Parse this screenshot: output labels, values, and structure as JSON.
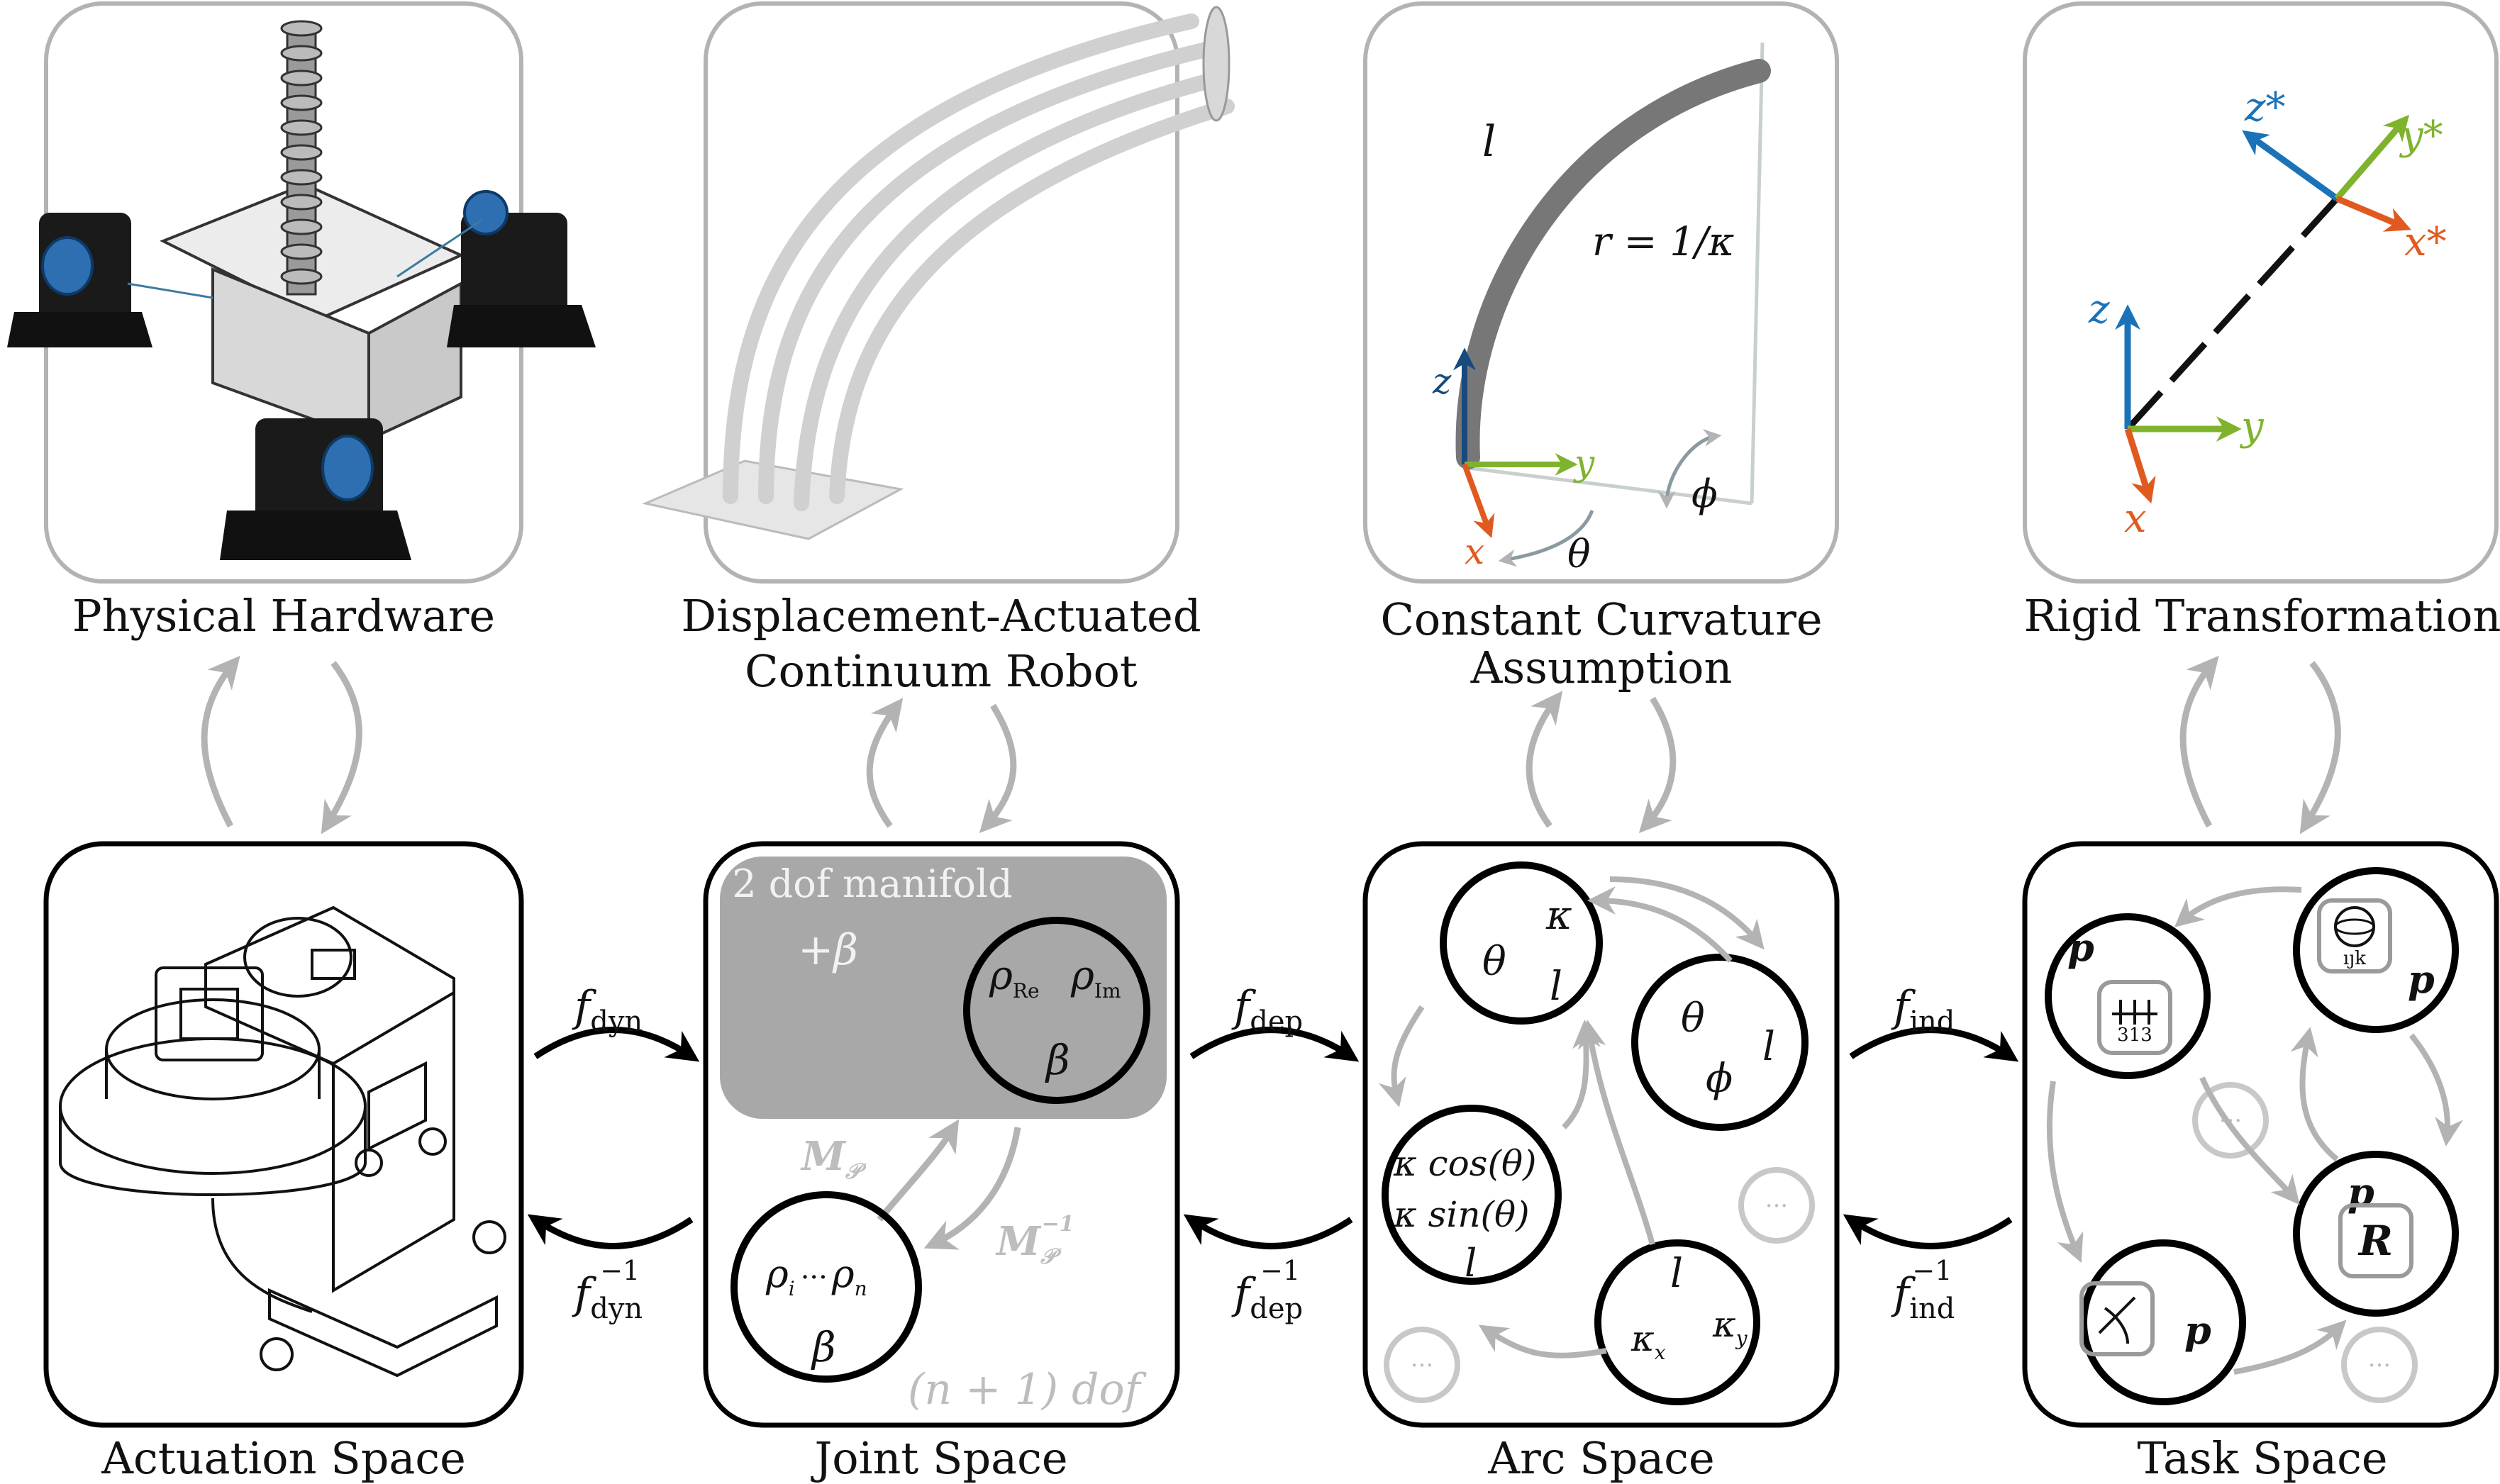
{
  "colors": {
    "frame_gray": "#b3b3b3",
    "frame_black": "#000000",
    "axis_blue": "#1a73b8",
    "axis_green": "#7fb32e",
    "axis_orange": "#e05a20",
    "manifold_fill": "#a8a8a8",
    "faded_text": "#bdbdbd"
  },
  "top_captions": {
    "physical_hardware": "Physical Hardware",
    "continuum_robot_line1": "Displacement-Actuated",
    "continuum_robot_line2": "Continuum Robot",
    "constant_curvature_line1": "Constant Curvature",
    "constant_curvature_line2": "Assumption",
    "rigid_transformation": "Rigid Transformation"
  },
  "bottom_captions": {
    "actuation_space": "Actuation Space",
    "joint_space": "Joint Space",
    "arc_space": "Arc Space",
    "task_space": "Task Space"
  },
  "maps": {
    "f_dyn": "f",
    "f_dyn_sub": "dyn",
    "f_dep": "f",
    "f_dep_sub": "dep",
    "f_ind": "f",
    "f_ind_sub": "ind",
    "inverse_sup": "−1"
  },
  "curvature_panel": {
    "l": "l",
    "r": "r = 1/κ",
    "z": "z",
    "y": "y",
    "x": "x",
    "theta": "θ",
    "phi": "ϕ"
  },
  "rigid_panel": {
    "z_star": "z*",
    "y_star": "y*",
    "x_star": "x*",
    "z": "z",
    "y": "y",
    "x": "x"
  },
  "joint_space": {
    "manifold_title": "2 dof manifold",
    "manifold_plus": "+β",
    "rho_re": "ρ",
    "rho_re_sub": "Re",
    "rho_im": "ρ",
    "rho_im_sub": "Im",
    "beta": "β",
    "map_P": "M",
    "map_P_sub": "𝒫",
    "map_P_inv": "M",
    "map_P_inv_sub": "𝒫",
    "map_P_inv_sup": "−1",
    "rho_i": "ρ",
    "rho_i_sub": "i",
    "dots": "···",
    "rho_n": "ρ",
    "rho_n_sub": "n",
    "beta2": "β",
    "dof_label": "(n + 1) dof"
  },
  "arc_space": {
    "c1": [
      "θ",
      "κ",
      "l"
    ],
    "c2": [
      "θ",
      "ϕ",
      "l"
    ],
    "c3": [
      "κ cos(θ)",
      "κ sin(θ)",
      "l"
    ],
    "c4": [
      "l",
      "κ",
      "x",
      "κ",
      "y"
    ],
    "ellipsis": "···"
  },
  "task_space": {
    "p": "p",
    "euler_code": "313",
    "quat_code": "ıȷk",
    "R": "R",
    "ellipsis": "···"
  }
}
